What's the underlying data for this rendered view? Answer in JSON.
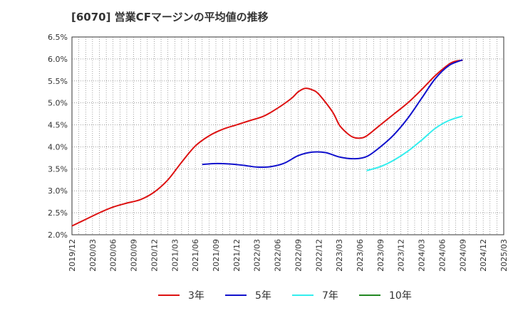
{
  "chart_data": {
    "type": "line",
    "title": "[6070]  営業CFマージンの平均値の推移",
    "xlabel": "",
    "ylabel": "",
    "y_unit": "%",
    "ylim": [
      2.0,
      6.5
    ],
    "yticks": [
      "2.0%",
      "2.5%",
      "3.0%",
      "3.5%",
      "4.0%",
      "4.5%",
      "5.0%",
      "5.5%",
      "6.0%",
      "6.5%"
    ],
    "xticks": [
      "2019/12",
      "2020/03",
      "2020/06",
      "2020/09",
      "2020/12",
      "2021/03",
      "2021/06",
      "2021/09",
      "2021/12",
      "2022/03",
      "2022/06",
      "2022/09",
      "2022/12",
      "2023/03",
      "2023/06",
      "2023/09",
      "2023/12",
      "2024/03",
      "2024/06",
      "2024/09",
      "2024/12",
      "2025/03"
    ],
    "grid": true,
    "legend_position": "bottom",
    "series": [
      {
        "name": "3年",
        "color": "#dd1111",
        "points": [
          [
            "2019/12",
            2.2
          ],
          [
            "2020/02",
            2.35
          ],
          [
            "2020/04",
            2.5
          ],
          [
            "2020/06",
            2.63
          ],
          [
            "2020/08",
            2.72
          ],
          [
            "2020/10",
            2.8
          ],
          [
            "2020/12",
            2.97
          ],
          [
            "2021/02",
            3.25
          ],
          [
            "2021/04",
            3.65
          ],
          [
            "2021/06",
            4.02
          ],
          [
            "2021/08",
            4.25
          ],
          [
            "2021/10",
            4.4
          ],
          [
            "2021/12",
            4.5
          ],
          [
            "2022/02",
            4.6
          ],
          [
            "2022/04",
            4.7
          ],
          [
            "2022/06",
            4.88
          ],
          [
            "2022/08",
            5.1
          ],
          [
            "2022/09",
            5.25
          ],
          [
            "2022/10",
            5.33
          ],
          [
            "2022/11",
            5.3
          ],
          [
            "2022/12",
            5.2
          ],
          [
            "2023/02",
            4.8
          ],
          [
            "2023/03",
            4.5
          ],
          [
            "2023/04",
            4.33
          ],
          [
            "2023/05",
            4.22
          ],
          [
            "2023/06",
            4.2
          ],
          [
            "2023/07",
            4.25
          ],
          [
            "2023/09",
            4.5
          ],
          [
            "2023/11",
            4.75
          ],
          [
            "2024/01",
            5.0
          ],
          [
            "2024/03",
            5.3
          ],
          [
            "2024/05",
            5.62
          ],
          [
            "2024/07",
            5.88
          ],
          [
            "2024/08",
            5.95
          ],
          [
            "2024/09",
            5.97
          ]
        ]
      },
      {
        "name": "5年",
        "color": "#1111cc",
        "points": [
          [
            "2021/07",
            3.6
          ],
          [
            "2021/09",
            3.62
          ],
          [
            "2021/11",
            3.61
          ],
          [
            "2022/01",
            3.58
          ],
          [
            "2022/03",
            3.54
          ],
          [
            "2022/05",
            3.55
          ],
          [
            "2022/07",
            3.63
          ],
          [
            "2022/09",
            3.8
          ],
          [
            "2022/11",
            3.88
          ],
          [
            "2023/01",
            3.87
          ],
          [
            "2023/03",
            3.77
          ],
          [
            "2023/05",
            3.73
          ],
          [
            "2023/07",
            3.78
          ],
          [
            "2023/09",
            4.0
          ],
          [
            "2023/11",
            4.28
          ],
          [
            "2024/01",
            4.65
          ],
          [
            "2024/03",
            5.1
          ],
          [
            "2024/05",
            5.55
          ],
          [
            "2024/07",
            5.85
          ],
          [
            "2024/09",
            5.98
          ]
        ]
      },
      {
        "name": "7年",
        "color": "#33eeee",
        "points": [
          [
            "2023/07",
            3.46
          ],
          [
            "2023/09",
            3.55
          ],
          [
            "2023/11",
            3.7
          ],
          [
            "2024/01",
            3.9
          ],
          [
            "2024/03",
            4.15
          ],
          [
            "2024/05",
            4.42
          ],
          [
            "2024/07",
            4.6
          ],
          [
            "2024/09",
            4.7
          ]
        ]
      },
      {
        "name": "10年",
        "color": "#228822",
        "points": []
      }
    ]
  }
}
